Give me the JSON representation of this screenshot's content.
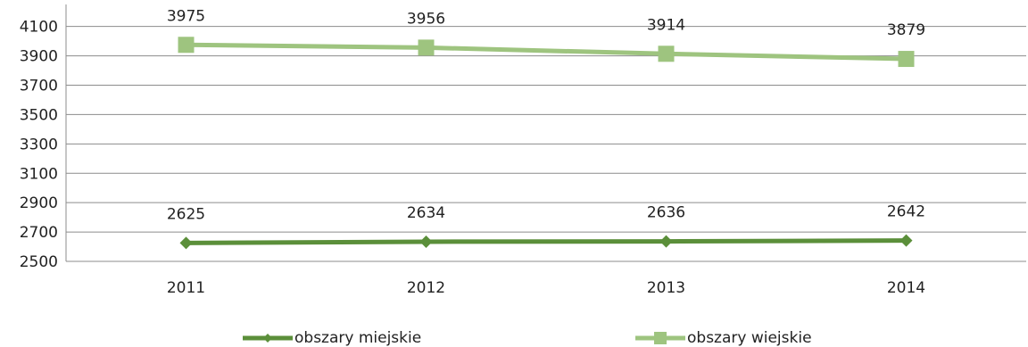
{
  "chart_data": {
    "type": "line",
    "categories": [
      "2011",
      "2012",
      "2013",
      "2014"
    ],
    "series": [
      {
        "name": "obszary miejskie",
        "values": [
          2625,
          2634,
          2636,
          2642
        ],
        "color": "#5b8f3a",
        "marker": "diamond"
      },
      {
        "name": "obszary wiejskie",
        "values": [
          3975,
          3956,
          3914,
          3879
        ],
        "color": "#9ec47f",
        "marker": "square"
      }
    ],
    "yticks": [
      "2500",
      "2700",
      "2900",
      "3100",
      "3300",
      "3500",
      "3700",
      "3900",
      "4100"
    ],
    "ylim": [
      2500,
      4250
    ],
    "grid": true,
    "legend_position": "bottom"
  }
}
